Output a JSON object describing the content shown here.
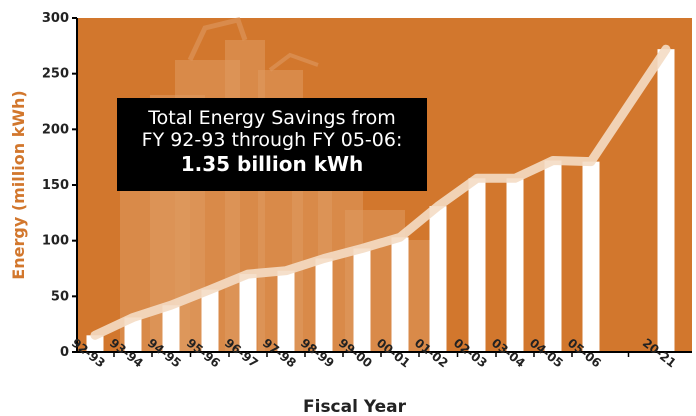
{
  "colors": {
    "plot_bg": "#D2772D",
    "bar": "#FFFFFF",
    "trend_line": "#F4DCC4",
    "buildings": "#DE9A61",
    "axis": "#000000",
    "ylabel": "#D2772D",
    "highlight_label": "#D2772D",
    "callout_bg": "#000000",
    "callout_text": "#FFFFFF"
  },
  "callout": {
    "line1": "Total Energy Savings from",
    "line2": "FY 92-93 through FY 05-06:",
    "line3": "1.35 billion kWh"
  },
  "chart_data": {
    "type": "bar",
    "title": "",
    "xlabel": "Fiscal Year",
    "ylabel": "Energy (million kWh)",
    "ylim": [
      0,
      300
    ],
    "yticks": [
      0,
      50,
      100,
      150,
      200,
      250,
      300
    ],
    "grid": false,
    "categories": [
      "92-93",
      "93-94",
      "94-95",
      "95-96",
      "96-97",
      "97-98",
      "98-99",
      "99-00",
      "00-01",
      "01-02",
      "02-03",
      "03-04",
      "04-05",
      "05-06",
      "20-21"
    ],
    "values": [
      15,
      31,
      42,
      56,
      70,
      73,
      84,
      93,
      103,
      131,
      156,
      156,
      172,
      171,
      272
    ],
    "highlight_category": "20-21",
    "trend_line": true
  }
}
